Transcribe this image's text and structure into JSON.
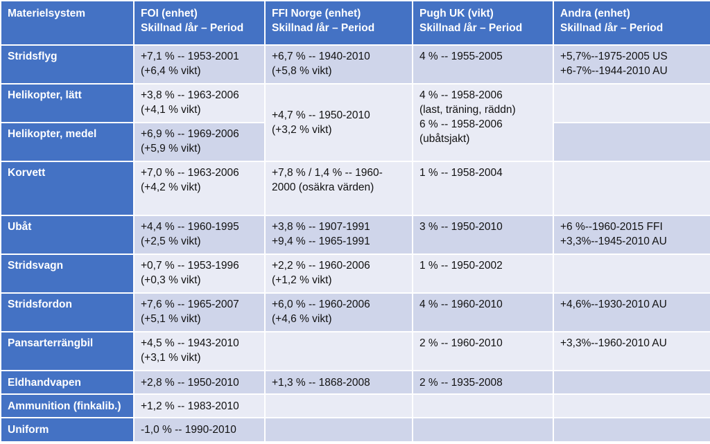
{
  "headers": [
    [
      "Materielsystem"
    ],
    [
      "FOI  (enhet)",
      "Skillnad /år – Period"
    ],
    [
      "FFI  Norge (enhet)",
      "Skillnad /år – Period"
    ],
    [
      "Pugh UK  (vikt)",
      "Skillnad /år – Period"
    ],
    [
      "Andra  (enhet)",
      "Skillnad /år – Period"
    ]
  ],
  "rows": [
    {
      "system": "Stridsflyg",
      "foi": [
        "+7,1 % -- 1953-2001",
        "(+6,4 % vikt)"
      ],
      "ffi": [
        "+6,7 % -- 1940-2010",
        "(+5,8 % vikt)"
      ],
      "pugh": [
        "4 % -- 1955-2005"
      ],
      "andra": [
        "+5,7%--1975-2005 US",
        "+6-7%--1944-2010 AU"
      ]
    },
    {
      "system": "Helikopter, lätt",
      "foi": [
        "+3,8 % -- 1963-2006",
        "(+4,1 % vikt)"
      ],
      "ffi": [
        "+4,7 % -- 1950-2010",
        "(+3,2 % vikt)"
      ],
      "pugh": [
        "4 % -- 1958-2006",
        "(last, träning, räddn)",
        "6 % -- 1958-2006",
        "(ubåtsjakt)"
      ],
      "andra": []
    },
    {
      "system": "Helikopter, medel",
      "foi": [
        "+6,9 % -- 1969-2006",
        "(+5,9 % vikt)"
      ],
      "andra": []
    },
    {
      "system": "Korvett",
      "foi": [
        "+7,0 % -- 1963-2006",
        "(+4,2 % vikt)"
      ],
      "ffi": [
        "+7,8 % / 1,4 % -- 1960-",
        "2000 (osäkra värden)"
      ],
      "pugh": [
        "1 % -- 1958-2004"
      ],
      "andra": []
    },
    {
      "system": "Ubåt",
      "foi": [
        "+4,4 % -- 1960-1995",
        "(+2,5 % vikt)"
      ],
      "ffi": [
        "+3,8 % -- 1907-1991",
        "+9,4 % -- 1965-1991"
      ],
      "pugh": [
        "3 % -- 1950-2010"
      ],
      "andra": [
        "+6 %--1960-2015 FFI",
        "+3,3%--1945-2010 AU"
      ]
    },
    {
      "system": "Stridsvagn",
      "foi": [
        "+0,7 % -- 1953-1996",
        "(+0,3 % vikt)"
      ],
      "ffi": [
        "+2,2 % -- 1960-2006",
        "(+1,2 % vikt)"
      ],
      "pugh": [
        "1 % -- 1950-2002"
      ],
      "andra": []
    },
    {
      "system": "Stridsfordon",
      "foi": [
        "+7,6 % -- 1965-2007",
        "(+5,1 % vikt)"
      ],
      "ffi": [
        "+6,0 %  -- 1960-2006",
        "(+4,6 % vikt)"
      ],
      "pugh": [
        "4 % -- 1960-2010"
      ],
      "andra": [
        "+4,6%--1930-2010 AU"
      ]
    },
    {
      "system": "Pansarterrängbil",
      "foi": [
        "+4,5 % -- 1943-2010",
        "(+3,1 % vikt)"
      ],
      "ffi": [],
      "pugh": [
        "2 % -- 1960-2010"
      ],
      "andra": [
        "+3,3%--1960-2010 AU"
      ]
    },
    {
      "system": "Eldhandvapen",
      "foi": [
        "+2,8 % -- 1950-2010"
      ],
      "ffi": [
        "+1,3 % -- 1868-2008"
      ],
      "pugh": [
        "2 % -- 1935-2008"
      ],
      "andra": []
    },
    {
      "system": "Ammunition (finkalib.)",
      "foi": [
        "+1,2 % -- 1983-2010"
      ],
      "ffi": [],
      "pugh": [],
      "andra": []
    },
    {
      "system": "Uniform",
      "foi": [
        "-1,0 % -- 1990-2010"
      ],
      "ffi": [],
      "pugh": [],
      "andra": []
    }
  ]
}
